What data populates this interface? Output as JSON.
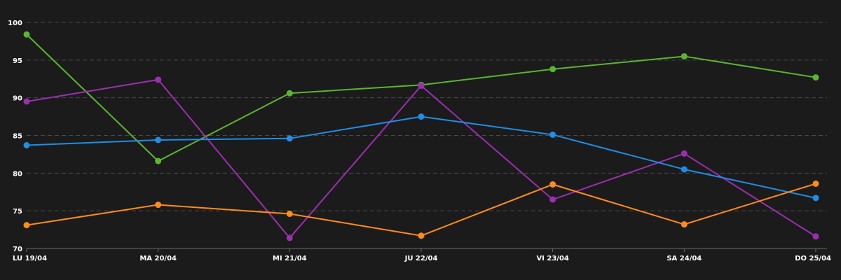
{
  "chart_data": {
    "type": "line",
    "categories": [
      "LU 19/04",
      "MA 20/04",
      "MI 21/04",
      "JU 22/04",
      "VI 23/04",
      "SA 24/04",
      "DO 25/04"
    ],
    "ylim": [
      70,
      100
    ],
    "yticks": [
      70,
      75,
      80,
      85,
      90,
      95,
      100
    ],
    "grid": true,
    "background": "#1b1b1b",
    "series": [
      {
        "name": "green",
        "color": "#5ab530",
        "values": [
          98.4,
          81.6,
          90.6,
          91.7,
          93.8,
          95.5,
          92.7
        ]
      },
      {
        "name": "purple",
        "color": "#9b2fb0",
        "values": [
          89.5,
          92.4,
          71.4,
          91.6,
          76.5,
          82.6,
          71.6
        ]
      },
      {
        "name": "blue",
        "color": "#1e8ee6",
        "values": [
          83.7,
          84.4,
          84.6,
          87.5,
          85.1,
          80.5,
          76.7
        ]
      },
      {
        "name": "orange",
        "color": "#ff8c1a",
        "values": [
          73.1,
          75.8,
          74.6,
          71.7,
          78.5,
          73.2,
          78.6
        ]
      }
    ]
  }
}
